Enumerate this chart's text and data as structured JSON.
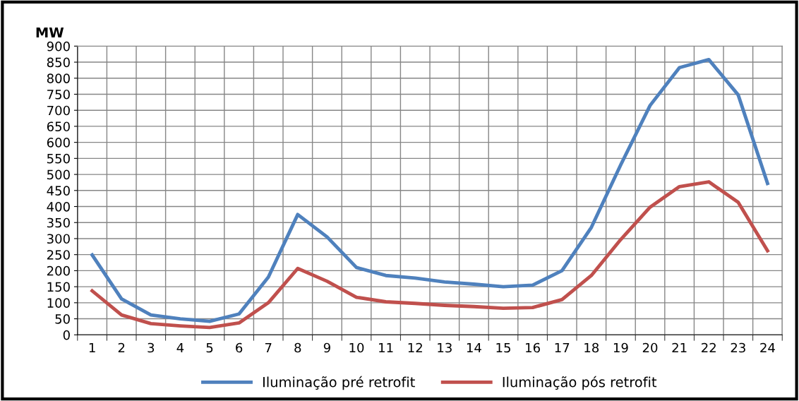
{
  "chart_data": {
    "type": "line",
    "ylabel": "MW",
    "categories": [
      "1",
      "2",
      "3",
      "4",
      "5",
      "6",
      "7",
      "8",
      "9",
      "10",
      "11",
      "12",
      "13",
      "14",
      "15",
      "16",
      "17",
      "18",
      "19",
      "20",
      "21",
      "22",
      "23",
      "24"
    ],
    "series": [
      {
        "name": "Iluminação pré retrofit",
        "color": "#4f81bd",
        "values": [
          249,
          112,
          62,
          50,
          42,
          65,
          180,
          375,
          305,
          210,
          185,
          177,
          165,
          158,
          150,
          155,
          200,
          335,
          530,
          715,
          833,
          858,
          748,
          472
        ]
      },
      {
        "name": "Iluminação pós retrofit",
        "color": "#c0504d",
        "values": [
          137,
          62,
          35,
          28,
          23,
          37,
          100,
          207,
          167,
          117,
          103,
          98,
          92,
          88,
          83,
          85,
          110,
          185,
          297,
          398,
          462,
          477,
          413,
          262
        ]
      }
    ],
    "ylim": [
      0,
      900
    ],
    "yticks": [
      0,
      50,
      100,
      150,
      200,
      250,
      300,
      350,
      400,
      450,
      500,
      550,
      600,
      650,
      700,
      750,
      800,
      850,
      900
    ],
    "grid": true,
    "legend": "bottom",
    "marker": "none",
    "line_style": "solid"
  }
}
